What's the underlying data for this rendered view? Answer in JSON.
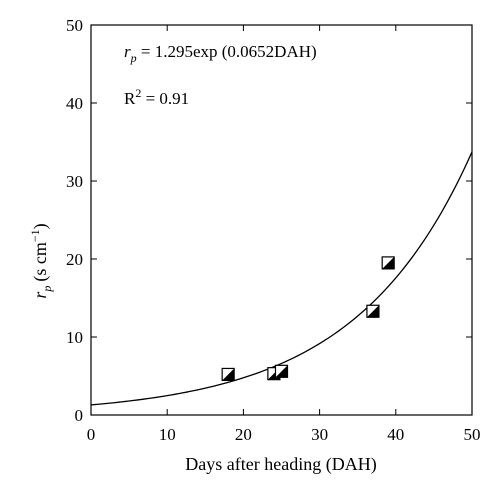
{
  "chart_data": {
    "type": "scatter",
    "xlabel": "Days after heading (DAH)",
    "ylabel": {
      "symbol": "r",
      "subscript": "p",
      "unit_prefix": "(s cm",
      "unit_exponent": "−1",
      "unit_suffix": ")"
    },
    "xlim": [
      0,
      50
    ],
    "ylim": [
      0,
      50
    ],
    "xticks": [
      0,
      10,
      20,
      30,
      40,
      50
    ],
    "yticks": [
      0,
      10,
      20,
      30,
      40,
      50
    ],
    "grid": false,
    "points": [
      {
        "x": 18,
        "y": 5.2
      },
      {
        "x": 24,
        "y": 5.3
      },
      {
        "x": 25,
        "y": 5.6
      },
      {
        "x": 37,
        "y": 13.3
      },
      {
        "x": 39,
        "y": 19.5
      }
    ],
    "fit": {
      "a": 1.295,
      "b": 0.0652,
      "x_range": [
        0,
        50
      ]
    },
    "annotations": {
      "equation": {
        "symbol": "r",
        "subscript": "p",
        "rhs": " = 1.295exp (0.0652DAH)"
      },
      "r2": {
        "prefix": "R",
        "superscript": "2",
        "rhs": " = 0.91"
      }
    }
  }
}
